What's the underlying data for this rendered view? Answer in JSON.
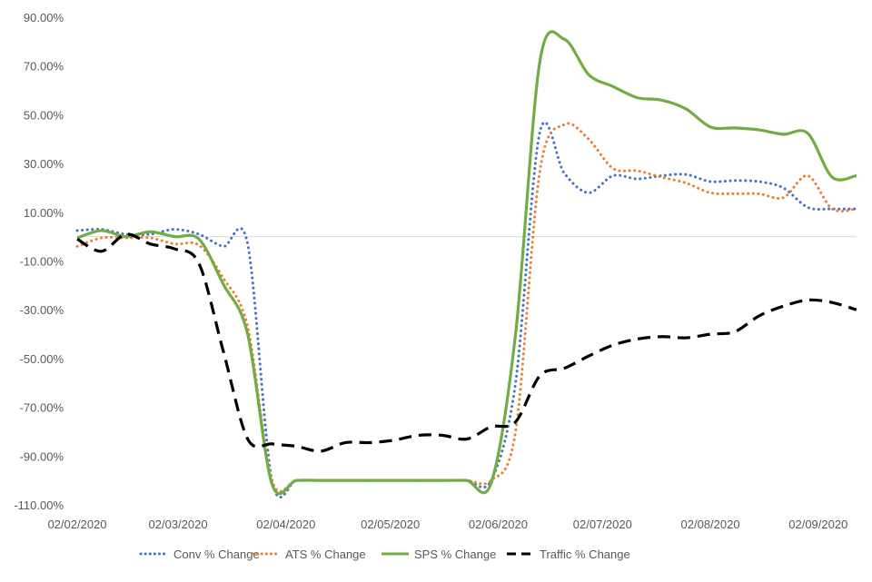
{
  "chart_data": {
    "type": "line",
    "title": "",
    "xlabel": "",
    "ylabel": "",
    "ylim": [
      -110,
      90
    ],
    "y_ticks": [
      "90.00%",
      "70.00%",
      "50.00%",
      "30.00%",
      "10.00%",
      "-10.00%",
      "-30.00%",
      "-50.00%",
      "-70.00%",
      "-90.00%",
      "-110.00%"
    ],
    "y_tick_values": [
      90,
      70,
      50,
      30,
      10,
      -10,
      -30,
      -50,
      -70,
      -90,
      -110
    ],
    "x_ticks": [
      "02/02/2020",
      "02/03/2020",
      "02/04/2020",
      "02/05/2020",
      "02/06/2020",
      "02/07/2020",
      "02/08/2020",
      "02/09/2020"
    ],
    "grid": false,
    "zero_line": true,
    "legend_position": "bottom",
    "x": [
      "02/02/2020",
      "09/02/2020",
      "16/02/2020",
      "23/02/2020",
      "01/03/2020",
      "08/03/2020",
      "15/03/2020",
      "22/03/2020",
      "29/03/2020",
      "05/04/2020",
      "12/04/2020",
      "19/04/2020",
      "26/04/2020",
      "03/05/2020",
      "10/05/2020",
      "17/05/2020",
      "24/05/2020",
      "31/05/2020",
      "07/06/2020",
      "14/06/2020",
      "21/06/2020",
      "28/06/2020",
      "05/07/2020",
      "12/07/2020",
      "19/07/2020",
      "26/07/2020",
      "02/08/2020",
      "09/08/2020",
      "16/08/2020",
      "23/08/2020",
      "30/08/2020",
      "06/09/2020",
      "13/09/2020"
    ],
    "series": [
      {
        "name": "Conv % Change",
        "color": "#4472C4",
        "style": "dotted",
        "values": [
          2.5,
          3,
          1,
          1,
          3,
          1,
          -4,
          -3,
          -100,
          -100,
          -100,
          -100,
          -100,
          -100,
          -100,
          -100,
          -100,
          -100,
          -60,
          43,
          26,
          18,
          25,
          23.7,
          25,
          25.5,
          22.6,
          23,
          22.6,
          20,
          12,
          11.4,
          11.4
        ]
      },
      {
        "name": "ATS % Change",
        "color": "#ED7D31",
        "style": "dotted",
        "values": [
          -4,
          -0.5,
          -0.5,
          -0.5,
          -3,
          -3.5,
          -17,
          -37,
          -100,
          -100,
          -100,
          -100,
          -100,
          -100,
          -100,
          -100,
          -100,
          -100,
          -80,
          27,
          46,
          40,
          28,
          27,
          24.4,
          22,
          18,
          17.6,
          17.6,
          16,
          25,
          11.4,
          11.4
        ]
      },
      {
        "name": "SPS % Change",
        "color": "#70AD47",
        "style": "solid",
        "values": [
          -0.5,
          2.5,
          0,
          2,
          0,
          -1,
          -19.5,
          -40,
          -101.5,
          -100,
          -100,
          -100,
          -100,
          -100,
          -100,
          -100,
          -100,
          -101,
          -40,
          72,
          81,
          66.5,
          61.6,
          57,
          56,
          52.4,
          45,
          44.6,
          43.8,
          42,
          42.4,
          24.4,
          25
        ]
      },
      {
        "name": "Traffic % Change",
        "color": "#000000",
        "style": "dashed",
        "values": [
          -1,
          -6,
          1,
          -3,
          -5,
          -11,
          -47,
          -83,
          -85,
          -86,
          -88,
          -84.5,
          -84.5,
          -83.5,
          -81.5,
          -81.5,
          -83,
          -78,
          -76,
          -57,
          -54,
          -49,
          -44.5,
          -42,
          -41,
          -41.5,
          -40,
          -39,
          -32.5,
          -28.5,
          -26,
          -27,
          -30
        ]
      }
    ]
  }
}
